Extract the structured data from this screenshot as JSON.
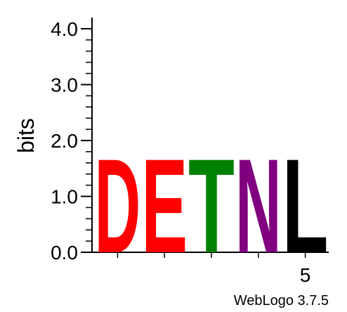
{
  "chart_data": {
    "type": "sequence-logo",
    "ylabel": "bits",
    "ylim": [
      0,
      4.2
    ],
    "y_ticks": [
      {
        "value": 0.0,
        "label": "0.0"
      },
      {
        "value": 1.0,
        "label": "1.0"
      },
      {
        "value": 2.0,
        "label": "2.0"
      },
      {
        "value": 3.0,
        "label": "3.0"
      },
      {
        "value": 4.0,
        "label": "4.0"
      }
    ],
    "y_minor_step": 0.2,
    "x_positions": [
      1,
      2,
      3,
      4,
      5
    ],
    "x_tick_labels": [
      {
        "position": 5,
        "label": "5"
      }
    ],
    "columns": [
      {
        "position": 1,
        "letter": "D",
        "bits": 1.75,
        "color": "#ff0000"
      },
      {
        "position": 2,
        "letter": "E",
        "bits": 1.75,
        "color": "#ff0000"
      },
      {
        "position": 3,
        "letter": "T",
        "bits": 1.75,
        "color": "#008000"
      },
      {
        "position": 4,
        "letter": "N",
        "bits": 1.75,
        "color": "#800080"
      },
      {
        "position": 5,
        "letter": "L",
        "bits": 1.75,
        "color": "#000000"
      }
    ],
    "credit": "WebLogo 3.7.5"
  }
}
